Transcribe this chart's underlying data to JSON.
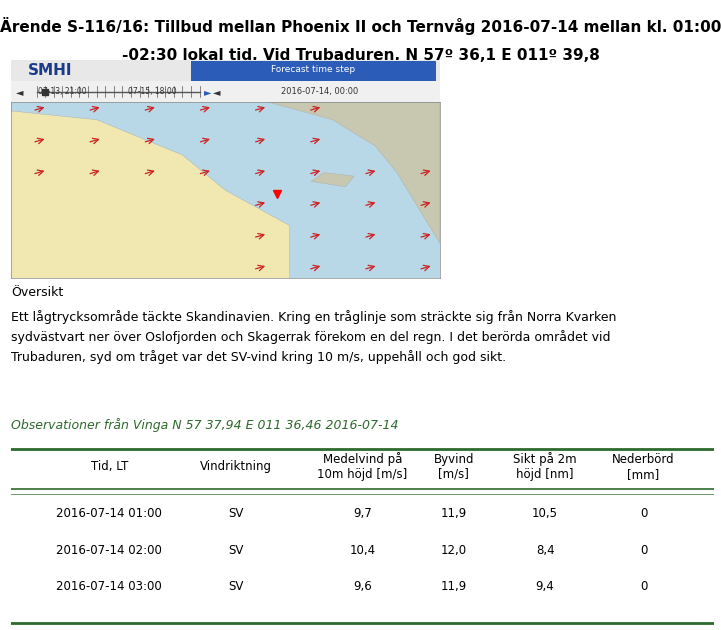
{
  "title_line1": "Ärende S-116/16: Tillbud mellan Phoenix II och Ternvåg 2016-07-14 mellan kl. 01:00",
  "title_line2": "-02:30 lokal tid, Vid Trubaduren, N 57º 36,1 E 011º 39,8",
  "oversikt_header": "Översikt",
  "oversikt_text": "Ett lågtrycksområde täckte Skandinavien. Kring en tråglinje som sträckte sig från Norra Kvarken\nsydvästvart ner över Oslofjorden och Skagerrak förekom en del regn. I det berörda området vid\nTrubaduren, syd om tråget var det SV-vind kring 10 m/s, uppehåll och god sikt.",
  "obs_label": "Observationer från Vinga N 57 37,94 E 011 36,46 2016-07-14",
  "col_headers": [
    "Tid, LT",
    "Vindriktning",
    "Medelvind på\n10m höjd [m/s]",
    "Byvind\n[m/s]",
    "Sikt på 2m\nhöjd [nm]",
    "Nederbörd\n[mm]"
  ],
  "table_data": [
    [
      "2016-07-14 01:00",
      "SV",
      "9,7",
      "11,9",
      "10,5",
      "0"
    ],
    [
      "2016-07-14 02:00",
      "SV",
      "10,4",
      "12,0",
      "8,4",
      "0"
    ],
    [
      "2016-07-14 03:00",
      "SV",
      "9,6",
      "11,9",
      "9,4",
      "0"
    ]
  ],
  "header_color": "#2d6a2d",
  "bg_color": "#ffffff",
  "title_fontsize": 11,
  "body_fontsize": 9,
  "table_fontsize": 8.5
}
